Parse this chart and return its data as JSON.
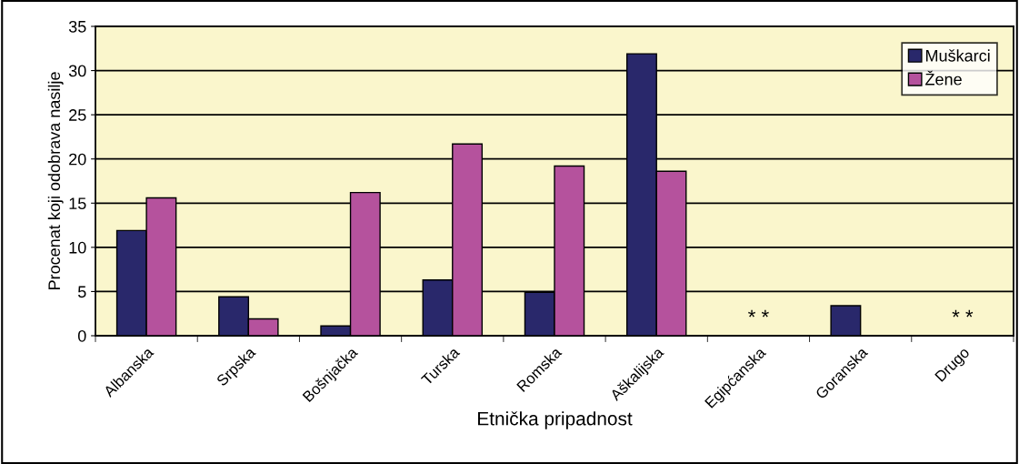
{
  "chart_data": {
    "type": "bar",
    "xlabel": "Etnička pripadnost",
    "ylabel": "Procenat koji odobrava nasilje",
    "categories": [
      "Albanska",
      "Srpska",
      "Bošnjačka",
      "Turska",
      "Romska",
      "Aškalijska",
      "Egipćanska",
      "Goranska",
      "Drugo"
    ],
    "series": [
      {
        "name": "Muškarci",
        "color": "#29286b",
        "values": [
          11.9,
          4.4,
          1.1,
          6.3,
          4.9,
          31.9,
          null,
          3.4,
          null
        ]
      },
      {
        "name": "Žene",
        "color": "#b5529d",
        "values": [
          15.6,
          1.9,
          16.2,
          21.7,
          19.2,
          18.6,
          null,
          null,
          null
        ]
      }
    ],
    "annotations": [
      "* *",
      "* *"
    ],
    "ylim": [
      0,
      35
    ],
    "yticks": [
      0,
      5,
      10,
      15,
      20,
      25,
      30,
      35
    ],
    "grid": "y",
    "legend": "top right"
  }
}
